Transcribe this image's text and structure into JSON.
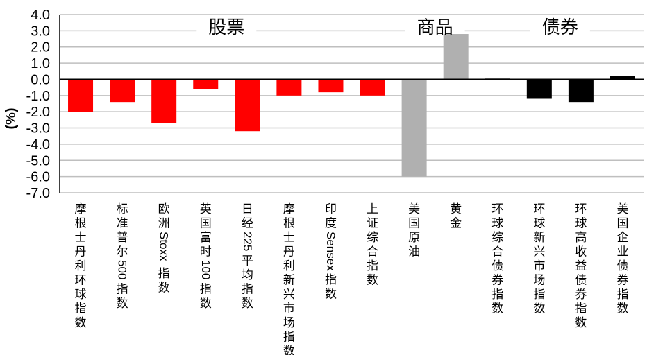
{
  "chart_data": {
    "type": "bar",
    "ylabel": "(%)",
    "ylim": [
      -7.0,
      4.0
    ],
    "yticks": [
      "4.0",
      "3.0",
      "2.0",
      "1.0",
      "0.0",
      "-1.0",
      "-2.0",
      "-3.0",
      "-4.0",
      "-5.0",
      "-6.0",
      "-7.0"
    ],
    "grid": true,
    "categories": [
      "摩根士丹利环球指数",
      "标准普尔500指数",
      "欧洲Stoxx指数",
      "英国富时100指数",
      "日经225平均指数",
      "摩根士丹利新兴市场指数",
      "印度Sensex指数",
      "上证综合指数",
      "美国原油",
      "黄金",
      "环球综合债券指数",
      "环球新兴市场指数",
      "环球高收益债券指数",
      "美国企业债券指数"
    ],
    "values": [
      -2.0,
      -1.4,
      -2.7,
      -0.6,
      -3.2,
      -1.0,
      -0.8,
      -1.0,
      -6.0,
      2.8,
      0.05,
      -1.2,
      -1.4,
      0.2
    ],
    "groups": [
      {
        "name": "股票",
        "start": 0,
        "end": 7,
        "color": "#ff0000"
      },
      {
        "name": "商品",
        "start": 8,
        "end": 9,
        "color": "#b0b0b0"
      },
      {
        "name": "债券",
        "start": 10,
        "end": 13,
        "color": "#000000"
      }
    ]
  }
}
